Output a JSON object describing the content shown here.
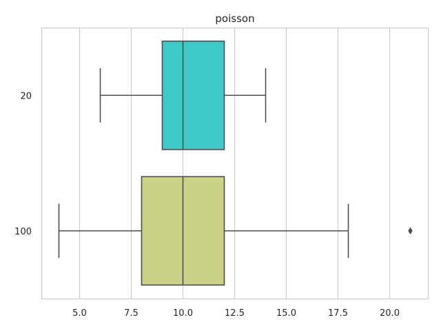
{
  "chart_data": {
    "type": "boxplot",
    "orientation": "horizontal",
    "title": "poisson",
    "xlabel": "",
    "ylabel": "",
    "xlim": [
      3.15,
      21.85
    ],
    "x_ticks": [
      5.0,
      7.5,
      10.0,
      12.5,
      15.0,
      17.5,
      20.0
    ],
    "x_tick_labels": [
      "5.0",
      "7.5",
      "10.0",
      "12.5",
      "15.0",
      "17.5",
      "20.0"
    ],
    "grid": "vertical",
    "categories": [
      "20",
      "100"
    ],
    "series": [
      {
        "category": "20",
        "whisker_low": 6,
        "q1": 9,
        "median": 10,
        "q3": 12,
        "whisker_high": 14,
        "outliers": [],
        "color": "#3ec9c9"
      },
      {
        "category": "100",
        "whisker_low": 4,
        "q1": 8,
        "median": 10,
        "q3": 12,
        "whisker_high": 18,
        "outliers": [
          21
        ],
        "color": "#cbd286"
      }
    ],
    "colors": {
      "grid": "#cccccc",
      "axes_edge": "#cccccc",
      "line": "#4d4d4d",
      "text": "#262626"
    }
  }
}
